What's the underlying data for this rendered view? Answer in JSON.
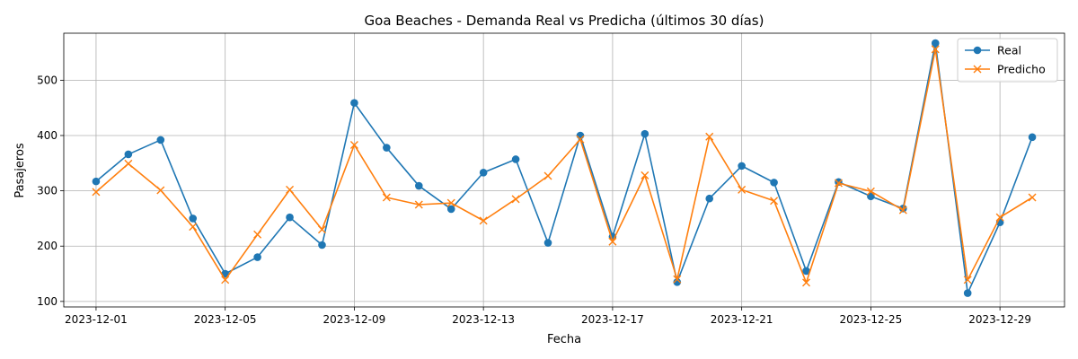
{
  "chart_data": {
    "type": "line",
    "title": "Goa Beaches - Demanda Real vs Predicha (últimos 30 días)",
    "xlabel": "Fecha",
    "ylabel": "Pasajeros",
    "x": [
      "2023-12-01",
      "2023-12-02",
      "2023-12-03",
      "2023-12-04",
      "2023-12-05",
      "2023-12-06",
      "2023-12-07",
      "2023-12-08",
      "2023-12-09",
      "2023-12-10",
      "2023-12-11",
      "2023-12-12",
      "2023-12-13",
      "2023-12-14",
      "2023-12-15",
      "2023-12-16",
      "2023-12-17",
      "2023-12-18",
      "2023-12-19",
      "2023-12-20",
      "2023-12-21",
      "2023-12-22",
      "2023-12-23",
      "2023-12-24",
      "2023-12-25",
      "2023-12-26",
      "2023-12-27",
      "2023-12-28",
      "2023-12-29",
      "2023-12-30"
    ],
    "xticks": [
      "2023-12-01",
      "2023-12-05",
      "2023-12-09",
      "2023-12-13",
      "2023-12-17",
      "2023-12-21",
      "2023-12-25",
      "2023-12-29"
    ],
    "yticks": [
      100,
      200,
      300,
      400,
      500
    ],
    "xlim": [
      "2023-11-30",
      "2023-12-31"
    ],
    "ylim": [
      90,
      585
    ],
    "grid": true,
    "legend_position": "top-right",
    "series": [
      {
        "name": "Real",
        "color": "#1f77b4",
        "marker": "circle",
        "values": [
          317,
          366,
          392,
          250,
          150,
          180,
          252,
          202,
          459,
          378,
          309,
          267,
          333,
          357,
          206,
          400,
          217,
          403,
          135,
          286,
          345,
          315,
          155,
          316,
          290,
          268,
          567,
          115,
          243,
          397
        ]
      },
      {
        "name": "Predicho",
        "color": "#ff7f0e",
        "marker": "x",
        "values": [
          298,
          349,
          301,
          235,
          139,
          221,
          302,
          230,
          383,
          288,
          275,
          278,
          246,
          285,
          327,
          393,
          208,
          328,
          140,
          398,
          302,
          282,
          134,
          314,
          299,
          265,
          556,
          139,
          252,
          288
        ]
      }
    ]
  }
}
